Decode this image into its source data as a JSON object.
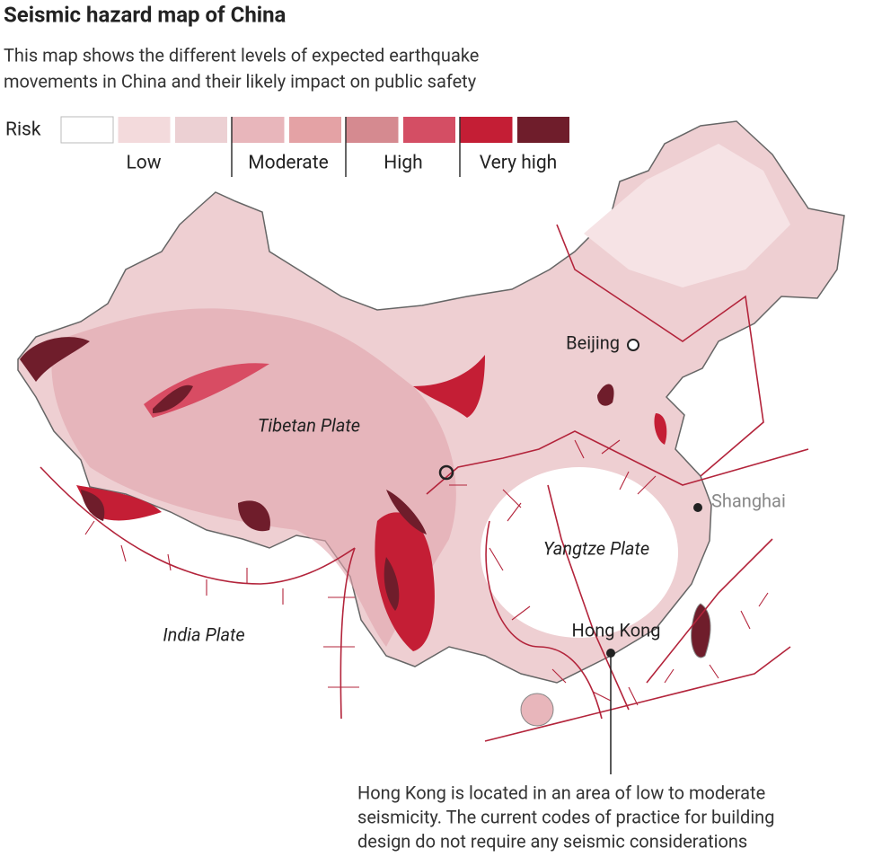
{
  "header": {
    "title": "Seismic hazard map of China",
    "subtitle": [
      "This map shows the different levels of expected earthquake",
      "movements in China and their likely impact on public safety"
    ]
  },
  "legend": {
    "title": "Risk",
    "swatch_colors": [
      "#ffffff",
      "#f3dadc",
      "#ecd0d3",
      "#e8b6bb",
      "#e4a2a5",
      "#d58a90",
      "#d44e64",
      "#c41e35",
      "#6f1d2b"
    ],
    "levels": [
      "Low",
      "Moderate",
      "High",
      "Very high"
    ]
  },
  "map": {
    "plates": [
      "Tibetan Plate",
      "Yangtze Plate",
      "India Plate"
    ],
    "cities": [
      "Beijing",
      "Shanghai",
      "Hong Kong"
    ]
  },
  "annotation": [
    "Hong Kong is located in an area of low to moderate",
    "seismicity. The current codes of practice for building",
    "design do not require any seismic considerations"
  ]
}
